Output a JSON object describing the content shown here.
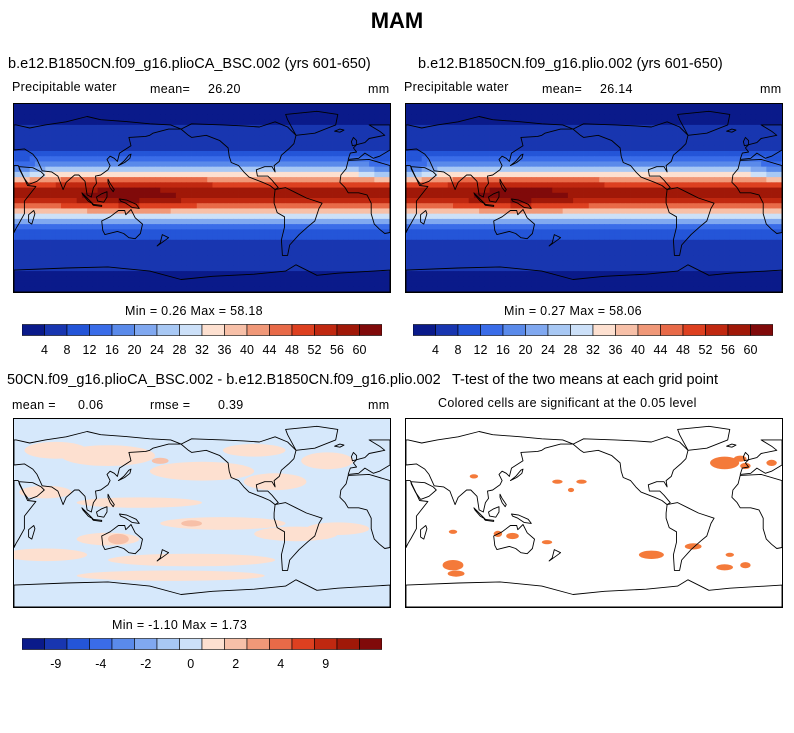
{
  "figure": {
    "title": "MAM"
  },
  "panels": [
    {
      "id": "plioCA",
      "title": "b.e12.B1850CN.f09_g16.plioCA_BSC.002 (yrs 601-650)",
      "variable": "Precipitable water",
      "mean_label": "mean=",
      "mean_value": "26.20",
      "units": "mm",
      "minmax": "Min =    0.26 Max =   58.18"
    },
    {
      "id": "plio",
      "title": "b.e12.B1850CN.f09_g16.plio.002 (yrs 601-650)",
      "variable": "Precipitable water",
      "mean_label": "mean=",
      "mean_value": "26.14",
      "units": "mm",
      "minmax": "Min =    0.27 Max =   58.06"
    },
    {
      "id": "difference",
      "title": "50CN.f09_g16.plioCA_BSC.002 - b.e12.B1850CN.f09_g16.plio.002",
      "mean_label": "mean =",
      "mean_value": "0.06",
      "rmse_label": "rmse =",
      "rmse_value": "0.39",
      "units": "mm",
      "minmax": "Min =  -1.10 Max =    1.73"
    },
    {
      "id": "ttest",
      "title": "T-test of the two means at each grid point",
      "subtitle": "Colored cells are significant at the 0.05 level"
    }
  ],
  "colorbars": {
    "absolute": {
      "labels": [
        "4",
        "8",
        "12",
        "16",
        "20",
        "24",
        "28",
        "32",
        "36",
        "40",
        "44",
        "48",
        "52",
        "56",
        "60"
      ],
      "colors": [
        "#0a1a8a",
        "#1836b0",
        "#2455d8",
        "#3a6ce8",
        "#5a8aea",
        "#80a8f0",
        "#a8c8f4",
        "#cce0f8",
        "#fde0d0",
        "#f7c0a8",
        "#f09878",
        "#e86a48",
        "#dd4020",
        "#c02810",
        "#a01808",
        "#800a0a"
      ]
    },
    "difference": {
      "labels": [
        "-9",
        "-4",
        "-2",
        "0",
        "2",
        "4",
        "9"
      ],
      "tick_positions": [
        1.5,
        3.5,
        5.5,
        7.5,
        9.5,
        11.5,
        13.5
      ],
      "colors": [
        "#0a1a8a",
        "#1836b0",
        "#2455d8",
        "#3a6ce8",
        "#5a8aea",
        "#80a8f0",
        "#a8c8f4",
        "#cce0f8",
        "#fde0d0",
        "#f7c0a8",
        "#f09878",
        "#e86a48",
        "#dd4020",
        "#c02810",
        "#a01808",
        "#800a0a"
      ]
    }
  },
  "chart_data": [
    {
      "type": "heatmap",
      "panel": "plioCA",
      "title": "b.e12.B1850CN.f09_g16.plioCA_BSC.002 (yrs 601-650)",
      "variable": "Precipitable water",
      "units": "mm",
      "mean": 26.2,
      "min": 0.26,
      "max": 58.18,
      "levels": [
        4,
        8,
        12,
        16,
        20,
        24,
        28,
        32,
        36,
        40,
        44,
        48,
        52,
        56,
        60
      ]
    },
    {
      "type": "heatmap",
      "panel": "plio",
      "title": "b.e12.B1850CN.f09_g16.plio.002 (yrs 601-650)",
      "variable": "Precipitable water",
      "units": "mm",
      "mean": 26.14,
      "min": 0.27,
      "max": 58.06,
      "levels": [
        4,
        8,
        12,
        16,
        20,
        24,
        28,
        32,
        36,
        40,
        44,
        48,
        52,
        56,
        60
      ]
    },
    {
      "type": "heatmap",
      "panel": "difference",
      "units": "mm",
      "mean": 0.06,
      "rmse": 0.39,
      "min": -1.1,
      "max": 1.73,
      "levels": [
        -9,
        -4,
        -2,
        0,
        2,
        4,
        9
      ]
    },
    {
      "type": "heatmap",
      "panel": "ttest",
      "title": "T-test of the two means at each grid point",
      "subtitle": "Colored cells are significant at the 0.05 level",
      "significance_level": 0.05,
      "significant_color": "#f47a3a"
    }
  ]
}
